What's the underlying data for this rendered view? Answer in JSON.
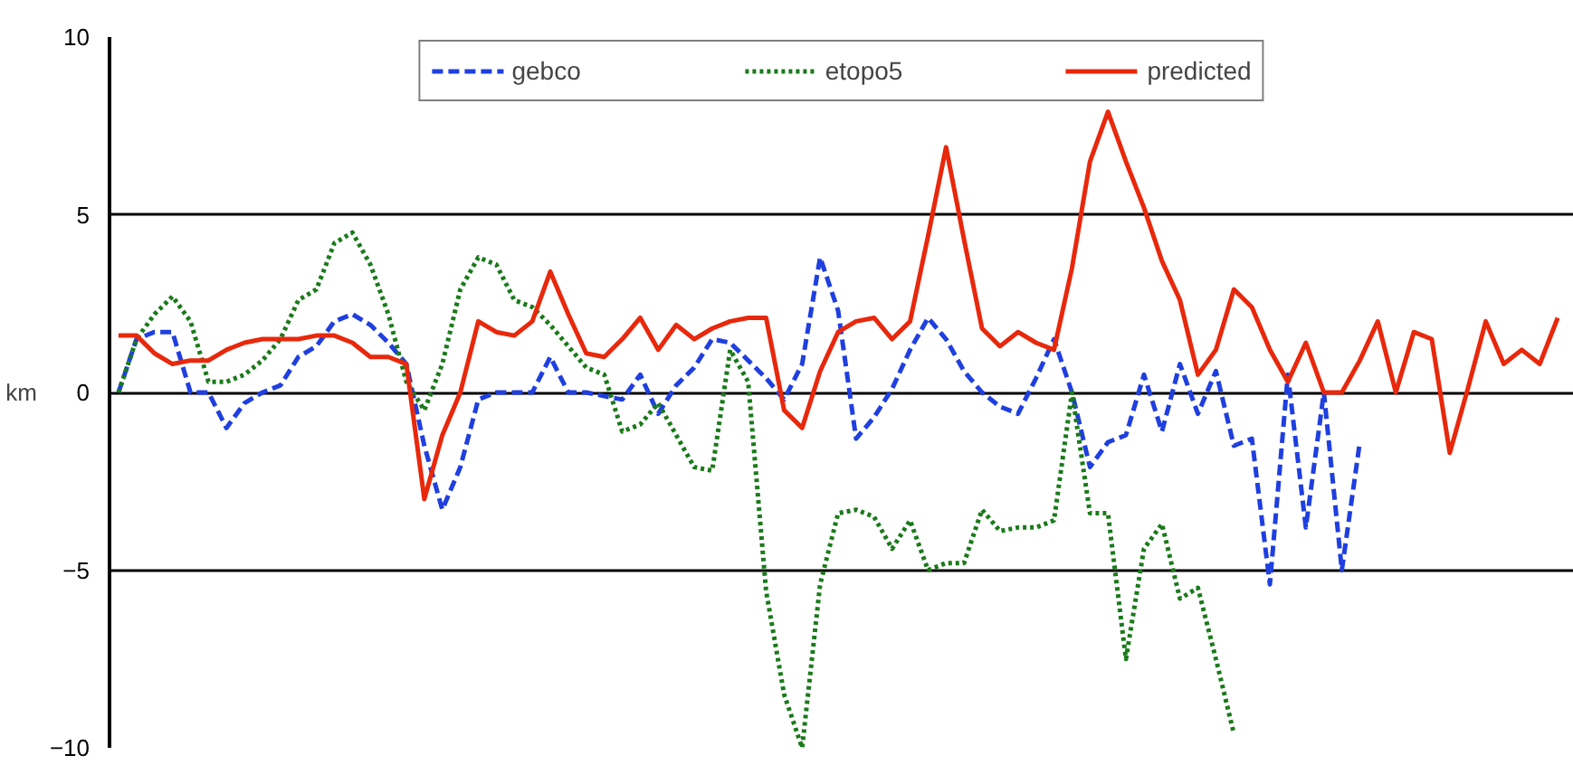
{
  "chart_data": {
    "type": "line",
    "ylabel": "km",
    "categories": [
      null,
      null,
      null,
      null,
      null,
      null,
      null,
      null,
      null,
      null,
      null,
      null,
      null,
      null,
      null,
      null,
      null,
      null,
      null,
      null,
      null,
      null,
      null,
      null,
      null,
      null,
      null,
      null,
      null,
      null,
      null,
      null,
      null,
      null,
      null,
      null,
      null,
      null,
      null,
      null,
      null,
      null,
      null,
      null,
      null,
      null,
      null,
      null,
      null,
      null,
      null,
      null,
      null,
      null,
      null,
      null,
      null,
      null,
      null,
      null,
      null,
      null,
      null,
      null,
      null,
      null,
      null,
      null,
      null,
      null,
      null,
      null,
      null,
      null,
      null,
      null,
      null,
      null,
      null,
      null,
      null
    ],
    "ylim": [
      -10,
      10
    ],
    "yticks": [
      -10,
      -5,
      0,
      5,
      10
    ],
    "grid": "y",
    "legend": "top",
    "tick_labels": "y",
    "marker": "none",
    "series": [
      {
        "name": "gebco",
        "color": "#1f3fdf",
        "line_style": "dashed",
        "values": [
          0,
          1.5,
          1.7,
          1.7,
          0,
          0,
          -1.0,
          -0.3,
          0,
          0.2,
          1.0,
          1.3,
          2.0,
          2.2,
          1.9,
          1.4,
          0.8,
          -1.5,
          -3.3,
          -2.1,
          -0.2,
          0,
          0,
          0,
          1.0,
          0,
          0,
          -0.1,
          -0.2,
          0.5,
          -0.6,
          0.2,
          0.7,
          1.5,
          1.4,
          0.9,
          0.4,
          -0.2,
          0.8,
          3.8,
          2.3,
          -1.3,
          -0.7,
          0.1,
          1.2,
          2.1,
          1.5,
          0.6,
          0.0,
          -0.4,
          -0.6,
          0.4,
          1.5,
          0,
          -2.1,
          -1.4,
          -1.2,
          0.5,
          -1.1,
          0.8,
          -0.6,
          0.6,
          -1.5,
          -1.3,
          -5.4,
          0.5,
          -3.8,
          0,
          -5.0,
          -1.4,
          null,
          null,
          null,
          null,
          null,
          null,
          null,
          null,
          null,
          null,
          null
        ]
      },
      {
        "name": "etopo5",
        "color": "#1a7a1a",
        "line_style": "dotted",
        "values": [
          0,
          1.5,
          2.2,
          2.7,
          2.0,
          0.3,
          0.3,
          0.5,
          0.9,
          1.5,
          2.6,
          2.9,
          4.2,
          4.5,
          3.6,
          2.2,
          0.3,
          -0.5,
          0.8,
          2.9,
          3.8,
          3.6,
          2.6,
          2.4,
          1.9,
          1.3,
          0.7,
          0.5,
          -1.1,
          -0.9,
          -0.3,
          -1.2,
          -2.1,
          -2.2,
          1.2,
          0.3,
          -5.6,
          -8.5,
          -10,
          -5.4,
          -3.4,
          -3.3,
          -3.5,
          -4.4,
          -3.6,
          -5.0,
          -4.8,
          -4.8,
          -3.3,
          -3.9,
          -3.8,
          -3.8,
          -3.6,
          0,
          -3.4,
          -3.4,
          -7.5,
          -4.4,
          -3.7,
          -5.8,
          -5.5,
          -7.5,
          -9.6,
          null,
          null,
          null,
          null,
          null,
          null,
          null,
          null,
          null,
          null,
          null,
          null,
          null,
          null,
          null,
          null,
          null,
          null
        ]
      },
      {
        "name": "predicted",
        "color": "#e8280c",
        "line_style": "solid",
        "values": [
          1.6,
          1.6,
          1.1,
          0.8,
          0.9,
          0.9,
          1.2,
          1.4,
          1.5,
          1.5,
          1.5,
          1.6,
          1.6,
          1.4,
          1.0,
          1.0,
          0.8,
          -3.0,
          -1.2,
          0,
          2.0,
          1.7,
          1.6,
          2.0,
          3.4,
          2.2,
          1.1,
          1.0,
          1.5,
          2.1,
          1.2,
          1.9,
          1.5,
          1.8,
          2.0,
          2.1,
          2.1,
          -0.5,
          -1.0,
          0.6,
          1.7,
          2.0,
          2.1,
          1.5,
          2.0,
          4.4,
          6.9,
          4.3,
          1.8,
          1.3,
          1.7,
          1.4,
          1.2,
          3.5,
          6.5,
          7.9,
          6.5,
          5.2,
          3.7,
          2.6,
          0.5,
          1.2,
          2.9,
          2.4,
          1.2,
          0.3,
          1.4,
          0,
          0,
          0.9,
          2.0,
          0,
          1.7,
          1.5,
          -1.7,
          0.1,
          2.0,
          0.8,
          1.2,
          0.8,
          2.1
        ]
      }
    ]
  }
}
